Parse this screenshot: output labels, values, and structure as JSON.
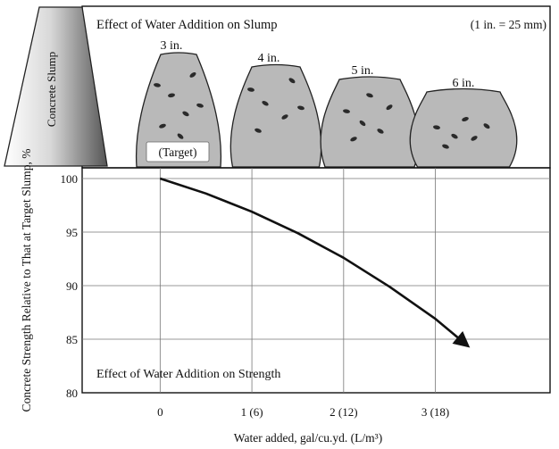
{
  "chart_data": {
    "type": "line",
    "top_panel": {
      "title": "Effect of Water Addition on Slump",
      "unit_note": "(1 in. = 25 mm)",
      "side_label": "Concrete Slump",
      "cones": [
        {
          "label": "3 in.",
          "slump_in": 3,
          "note": "(Target)"
        },
        {
          "label": "4 in.",
          "slump_in": 4
        },
        {
          "label": "5 in.",
          "slump_in": 5
        },
        {
          "label": "6 in.",
          "slump_in": 6
        }
      ]
    },
    "title": "Effect of Water Addition on Strength",
    "xlabel": "Water added, gal/cu.yd. (L/m³)",
    "ylabel": "Concrete Strength Relative to That at Target Slump, %",
    "x_ticks": [
      {
        "value": 0,
        "label": "0"
      },
      {
        "value": 1,
        "label": "1 (6)"
      },
      {
        "value": 2,
        "label": "2 (12)"
      },
      {
        "value": 3,
        "label": "3 (18)"
      }
    ],
    "y_ticks": [
      80,
      85,
      90,
      95,
      100
    ],
    "xlim": [
      -0.85,
      4.25
    ],
    "ylim": [
      80,
      101
    ],
    "grid": true,
    "series": [
      {
        "x": [
          0,
          0.5,
          1,
          1.5,
          2,
          2.5,
          3,
          3.35
        ],
        "y": [
          100,
          98.6,
          96.9,
          94.9,
          92.6,
          89.9,
          86.9,
          84.4
        ]
      }
    ]
  }
}
